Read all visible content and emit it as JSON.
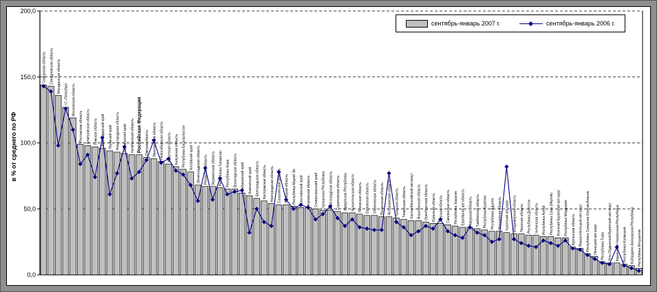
{
  "colors": {
    "bar_fill": "#c0c0c0",
    "bar_stroke": "#000000",
    "line": "#000080",
    "grid": "#000000",
    "frame_bg": "#8f8f8f",
    "plot_bg": "#ffffff"
  },
  "chart_data": {
    "type": "bar",
    "combo": "bar + line",
    "title": "",
    "xlabel": "",
    "ylabel": "в % от среднего по РФ",
    "ylim": [
      0,
      200
    ],
    "ytick_step": 50,
    "yticks": [
      "0,0",
      "50,0",
      "100,0",
      "150,0",
      "200,0"
    ],
    "grid_values": [
      50,
      100,
      150,
      200
    ],
    "grid_style": "dashed",
    "legend_position": "top-right",
    "highlight_category": "Российская Федерация",
    "categories": [
      "Самарская область",
      "Свердловская область",
      "Магаданская область",
      "г.С.-Петербург",
      "Московская область",
      "Ростовская область",
      "Кемеровская область",
      "Томская область",
      "Краснодарский край",
      "Пермский край",
      "Нижегородская область",
      "Приморский край",
      "Челябинская область",
      "Российская Федерация",
      "Омская область",
      "Ярославская область",
      "Новосибирская область",
      "Иркутская область",
      "Калужская область",
      "Республика Башкортостан",
      "Алтайский край",
      "Ленинградская область",
      "Рязанская область",
      "Мурманская область",
      "Республика Татарстан",
      "Республика Коми",
      "Вологодская область",
      "Хабаровский край",
      "Камчатский край",
      "Белгородская область",
      "Костромская область",
      "Новгородская область",
      "Сахалинская область",
      "Липецкая область",
      "Республика Марий Эл",
      "Красноярский край",
      "Кировская область",
      "Ставропольский край",
      "Чувашская Республика",
      "Волгоградская область",
      "Саратовская область",
      "Удмуртская Республика",
      "Архангельская область",
      "Псковская область",
      "Орловская область",
      "Ульяновская область",
      "Пензенская область",
      "Астраханская область",
      "Тульская область",
      "Тюменская область",
      "Ханты-Мансийский авт.округ",
      "Воронежская область",
      "Оренбургская область",
      "Брянская область",
      "Курская область",
      "Смоленская область",
      "Республика Хакасия",
      "Еврейская авт.область",
      "Амурская область",
      "Тамбовская область",
      "Республика Бурятия",
      "Республика Адыгея",
      "Ивановская область",
      "Чукотский авт.округ",
      "Владимирская область",
      "Тверская область",
      "Республика Дагестан",
      "Читинская область",
      "Республика Алтай",
      "Республика Саха (Якутия)",
      "Агинский Бурятский авт.округ",
      "Республика Мордовия",
      "Курганская область",
      "Ямало-Ненецкий авт.округ",
      "Республика Северная Осетия-Алания",
      "Ненецкий авт.округ",
      "Республика Тыва",
      "Усть-Ордынский Бурятский авт.округ",
      "Карачаево-Черкесская Республика",
      "Республика Калмыкия",
      "Кабардино-Балкарская Республика",
      "Республика Ингушетия"
    ],
    "series": [
      {
        "name": "сентябрь-январь 2007 г.",
        "type": "bar",
        "values": [
          144,
          143,
          136,
          127,
          119,
          99,
          98,
          97,
          96,
          94,
          93,
          92,
          91,
          91,
          89,
          88,
          86,
          84,
          82,
          80,
          78,
          68,
          67,
          67,
          66,
          65,
          65,
          62,
          60,
          58,
          56,
          54,
          53,
          53,
          52,
          51,
          51,
          50,
          49,
          49,
          48,
          47,
          47,
          46,
          45,
          45,
          44,
          44,
          43,
          42,
          41,
          41,
          40,
          39,
          39,
          38,
          37,
          36,
          36,
          35,
          34,
          33,
          33,
          32,
          31,
          31,
          30,
          30,
          29,
          29,
          28,
          28,
          21,
          20,
          16,
          14,
          10,
          9,
          9,
          8,
          7,
          5
        ]
      },
      {
        "name": "сентябрь-январь 2006 г.",
        "type": "line",
        "values": [
          143,
          139,
          98,
          126,
          110,
          84,
          91,
          74,
          104,
          61,
          77,
          97,
          73,
          78,
          87,
          102,
          85,
          88,
          79,
          76,
          68,
          56,
          81,
          57,
          73,
          61,
          63,
          64,
          32,
          50,
          40,
          37,
          78,
          57,
          50,
          53,
          51,
          42,
          46,
          52,
          43,
          37,
          42,
          36,
          35,
          34,
          34,
          77,
          40,
          36,
          30,
          33,
          37,
          35,
          42,
          33,
          30,
          28,
          36,
          32,
          30,
          25,
          27,
          82,
          27,
          24,
          22,
          21,
          26,
          24,
          22,
          26,
          20,
          19,
          15,
          12,
          9,
          8,
          21,
          7,
          5,
          3
        ]
      }
    ]
  },
  "legend": {
    "bar_label": "сентябрь-январь 2007 г.",
    "line_label": "сентябрь-январь 2006 г."
  },
  "axis": {
    "ylabel": "в % от среднего по РФ"
  }
}
